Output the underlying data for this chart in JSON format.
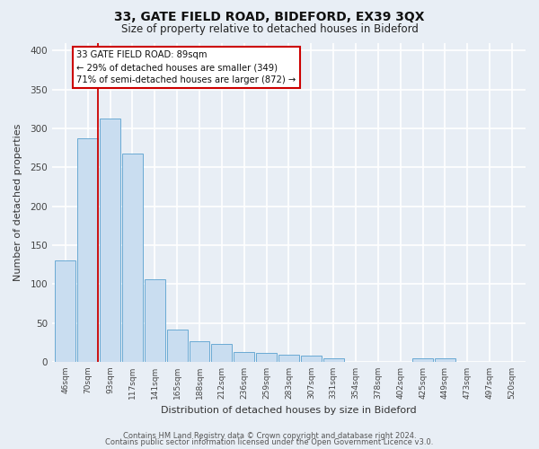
{
  "title": "33, GATE FIELD ROAD, BIDEFORD, EX39 3QX",
  "subtitle": "Size of property relative to detached houses in Bideford",
  "xlabel": "Distribution of detached houses by size in Bideford",
  "ylabel": "Number of detached properties",
  "bar_labels": [
    "46sqm",
    "70sqm",
    "93sqm",
    "117sqm",
    "141sqm",
    "165sqm",
    "188sqm",
    "212sqm",
    "236sqm",
    "259sqm",
    "283sqm",
    "307sqm",
    "331sqm",
    "354sqm",
    "378sqm",
    "402sqm",
    "425sqm",
    "449sqm",
    "473sqm",
    "497sqm",
    "520sqm"
  ],
  "bar_values": [
    130,
    287,
    312,
    268,
    106,
    41,
    26,
    23,
    13,
    11,
    9,
    8,
    4,
    0,
    0,
    0,
    4,
    4,
    0,
    0,
    0
  ],
  "bar_color": "#c9ddf0",
  "bar_edge_color": "#6aaad4",
  "ylim": [
    0,
    410
  ],
  "yticks": [
    0,
    50,
    100,
    150,
    200,
    250,
    300,
    350,
    400
  ],
  "property_line_color": "#cc0000",
  "annotation_text": "33 GATE FIELD ROAD: 89sqm\n← 29% of detached houses are smaller (349)\n71% of semi-detached houses are larger (872) →",
  "annotation_box_color": "#ffffff",
  "annotation_box_edge": "#cc0000",
  "footer1": "Contains HM Land Registry data © Crown copyright and database right 2024.",
  "footer2": "Contains public sector information licensed under the Open Government Licence v3.0.",
  "background_color": "#e8eef5",
  "grid_color": "#ffffff"
}
